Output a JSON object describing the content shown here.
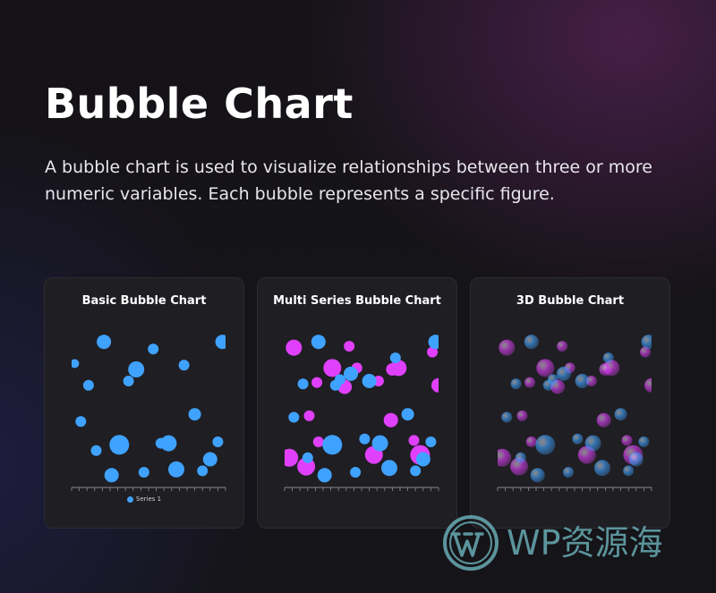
{
  "page": {
    "title": "Bubble Chart",
    "description": "A bubble chart is used to visualize relationships between three or more numeric variables. Each bubble represents a specific figure."
  },
  "colors": {
    "series_blue": "#3fa2ff",
    "series_magenta": "#e040fb",
    "card_background": "#1f1e23",
    "watermark": "#6fb8c2"
  },
  "cards": [
    {
      "title": "Basic Bubble Chart",
      "legend": "Series 1"
    },
    {
      "title": "Multi Series Bubble Chart"
    },
    {
      "title": "3D Bubble Chart"
    }
  ],
  "watermark": {
    "text": "WP资源海",
    "icon": "wordpress-logo-icon"
  },
  "chart_data": [
    {
      "type": "scatter",
      "title": "Basic Bubble Chart",
      "xlim": [
        0,
        100
      ],
      "ylim": [
        0,
        100
      ],
      "grid": false,
      "legend": "bottom",
      "series": [
        {
          "name": "Series 1",
          "color": "#3fa2ff",
          "points": [
            {
              "x": 21,
              "y": 98,
              "r": 8
            },
            {
              "x": 53,
              "y": 93,
              "r": 6
            },
            {
              "x": 98,
              "y": 98,
              "r": 8
            },
            {
              "x": 2,
              "y": 83,
              "r": 5
            },
            {
              "x": 42,
              "y": 79,
              "r": 9
            },
            {
              "x": 73,
              "y": 82,
              "r": 6
            },
            {
              "x": 11,
              "y": 68,
              "r": 6
            },
            {
              "x": 37,
              "y": 71,
              "r": 6
            },
            {
              "x": 80,
              "y": 48,
              "r": 7
            },
            {
              "x": 6,
              "y": 43,
              "r": 6
            },
            {
              "x": 16,
              "y": 23,
              "r": 6
            },
            {
              "x": 31,
              "y": 27,
              "r": 11
            },
            {
              "x": 58,
              "y": 28,
              "r": 6
            },
            {
              "x": 63,
              "y": 28,
              "r": 9
            },
            {
              "x": 95,
              "y": 29,
              "r": 6
            },
            {
              "x": 90,
              "y": 17,
              "r": 8
            },
            {
              "x": 26,
              "y": 6,
              "r": 8
            },
            {
              "x": 47,
              "y": 8,
              "r": 6
            },
            {
              "x": 68,
              "y": 10,
              "r": 9
            },
            {
              "x": 85,
              "y": 9,
              "r": 6
            }
          ]
        }
      ]
    },
    {
      "type": "scatter",
      "title": "Multi Series Bubble Chart",
      "xlim": [
        0,
        100
      ],
      "ylim": [
        0,
        100
      ],
      "grid": false,
      "legend": "none",
      "series": [
        {
          "color": "#e040fb",
          "points": [
            {
              "x": 6,
              "y": 94,
              "r": 9
            },
            {
              "x": 42,
              "y": 95,
              "r": 6
            },
            {
              "x": 31,
              "y": 80,
              "r": 10
            },
            {
              "x": 47,
              "y": 80,
              "r": 6
            },
            {
              "x": 74,
              "y": 80,
              "r": 9
            },
            {
              "x": 70,
              "y": 79,
              "r": 7
            },
            {
              "x": 39,
              "y": 67,
              "r": 8
            },
            {
              "x": 21,
              "y": 70,
              "r": 6
            },
            {
              "x": 61,
              "y": 71,
              "r": 6
            },
            {
              "x": 96,
              "y": 91,
              "r": 6
            },
            {
              "x": 100,
              "y": 68,
              "r": 8
            },
            {
              "x": 16,
              "y": 47,
              "r": 6
            },
            {
              "x": 69,
              "y": 44,
              "r": 8
            },
            {
              "x": 3,
              "y": 18,
              "r": 10
            },
            {
              "x": 14,
              "y": 12,
              "r": 10
            },
            {
              "x": 22,
              "y": 29,
              "r": 6
            },
            {
              "x": 58,
              "y": 20,
              "r": 10
            },
            {
              "x": 84,
              "y": 30,
              "r": 6
            },
            {
              "x": 88,
              "y": 20,
              "r": 11
            }
          ]
        },
        {
          "color": "#3fa2ff",
          "points": [
            {
              "x": 22,
              "y": 98,
              "r": 8
            },
            {
              "x": 98,
              "y": 98,
              "r": 8
            },
            {
              "x": 43,
              "y": 76,
              "r": 8
            },
            {
              "x": 12,
              "y": 69,
              "r": 6
            },
            {
              "x": 36,
              "y": 72,
              "r": 6
            },
            {
              "x": 55,
              "y": 71,
              "r": 8
            },
            {
              "x": 72,
              "y": 87,
              "r": 6
            },
            {
              "x": 33,
              "y": 68,
              "r": 6
            },
            {
              "x": 80,
              "y": 48,
              "r": 7
            },
            {
              "x": 6,
              "y": 46,
              "r": 6
            },
            {
              "x": 15,
              "y": 18,
              "r": 6
            },
            {
              "x": 31,
              "y": 27,
              "r": 11
            },
            {
              "x": 52,
              "y": 31,
              "r": 6
            },
            {
              "x": 62,
              "y": 28,
              "r": 9
            },
            {
              "x": 95,
              "y": 29,
              "r": 6
            },
            {
              "x": 90,
              "y": 17,
              "r": 8
            },
            {
              "x": 26,
              "y": 6,
              "r": 8
            },
            {
              "x": 46,
              "y": 8,
              "r": 6
            },
            {
              "x": 68,
              "y": 11,
              "r": 9
            },
            {
              "x": 85,
              "y": 9,
              "r": 6
            }
          ]
        }
      ]
    },
    {
      "type": "scatter",
      "title": "3D Bubble Chart",
      "xlim": [
        0,
        100
      ],
      "ylim": [
        0,
        100
      ],
      "grid": false,
      "legend": "none",
      "series": [
        {
          "color": "#e040fb",
          "points": [
            {
              "x": 6,
              "y": 94,
              "r": 9
            },
            {
              "x": 42,
              "y": 95,
              "r": 6
            },
            {
              "x": 31,
              "y": 80,
              "r": 10
            },
            {
              "x": 47,
              "y": 80,
              "r": 6
            },
            {
              "x": 74,
              "y": 80,
              "r": 9
            },
            {
              "x": 70,
              "y": 79,
              "r": 7
            },
            {
              "x": 39,
              "y": 67,
              "r": 8
            },
            {
              "x": 21,
              "y": 70,
              "r": 6
            },
            {
              "x": 61,
              "y": 71,
              "r": 6
            },
            {
              "x": 96,
              "y": 91,
              "r": 6
            },
            {
              "x": 100,
              "y": 68,
              "r": 8
            },
            {
              "x": 16,
              "y": 47,
              "r": 6
            },
            {
              "x": 69,
              "y": 44,
              "r": 8
            },
            {
              "x": 3,
              "y": 18,
              "r": 10
            },
            {
              "x": 14,
              "y": 12,
              "r": 10
            },
            {
              "x": 22,
              "y": 29,
              "r": 6
            },
            {
              "x": 58,
              "y": 20,
              "r": 10
            },
            {
              "x": 84,
              "y": 30,
              "r": 6
            },
            {
              "x": 88,
              "y": 20,
              "r": 11
            }
          ]
        },
        {
          "color": "#3fa2ff",
          "points": [
            {
              "x": 22,
              "y": 98,
              "r": 8
            },
            {
              "x": 98,
              "y": 98,
              "r": 8
            },
            {
              "x": 43,
              "y": 76,
              "r": 8
            },
            {
              "x": 12,
              "y": 69,
              "r": 6
            },
            {
              "x": 36,
              "y": 72,
              "r": 6
            },
            {
              "x": 55,
              "y": 71,
              "r": 8
            },
            {
              "x": 72,
              "y": 87,
              "r": 6
            },
            {
              "x": 33,
              "y": 68,
              "r": 6
            },
            {
              "x": 80,
              "y": 48,
              "r": 7
            },
            {
              "x": 6,
              "y": 46,
              "r": 6
            },
            {
              "x": 15,
              "y": 18,
              "r": 6
            },
            {
              "x": 31,
              "y": 27,
              "r": 11
            },
            {
              "x": 52,
              "y": 31,
              "r": 6
            },
            {
              "x": 62,
              "y": 28,
              "r": 9
            },
            {
              "x": 95,
              "y": 29,
              "r": 6
            },
            {
              "x": 90,
              "y": 17,
              "r": 8
            },
            {
              "x": 26,
              "y": 6,
              "r": 8
            },
            {
              "x": 46,
              "y": 8,
              "r": 6
            },
            {
              "x": 68,
              "y": 11,
              "r": 9
            },
            {
              "x": 85,
              "y": 9,
              "r": 6
            }
          ]
        }
      ]
    }
  ]
}
